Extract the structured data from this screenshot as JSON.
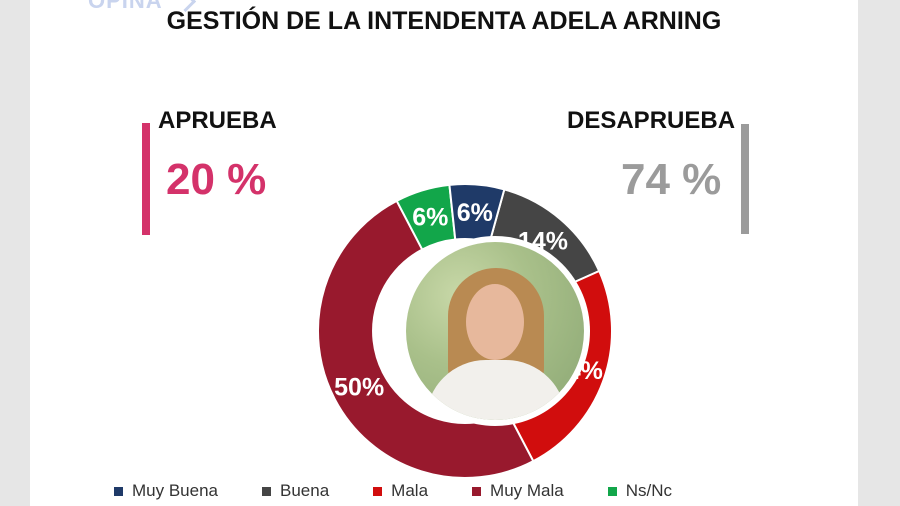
{
  "page": {
    "title": "GESTIÓN DE LA INTENDENTA ADELA ARNING",
    "logo_text": "OPINA"
  },
  "kpis": {
    "approve": {
      "label": "APRUEBA",
      "value": "20 %",
      "color": "#d4326a"
    },
    "disapprove": {
      "label": "DESAPRUEBA",
      "value": "74 %",
      "color": "#9b9b9b"
    }
  },
  "chart_data": {
    "type": "pie",
    "style": "donut",
    "center_image": "portrait photo",
    "categories": [
      "Muy Buena",
      "Buena",
      "Mala",
      "Muy Mala",
      "Ns/Nc"
    ],
    "values": [
      6,
      14,
      24,
      50,
      6
    ],
    "labels": [
      "6%",
      "14%",
      "24%",
      "50%",
      "6%"
    ],
    "colors": [
      "#1f3a68",
      "#454545",
      "#d10d0d",
      "#98192d",
      "#12a64a"
    ],
    "legend": {
      "position": "bottom",
      "entries": [
        "Muy Buena",
        "Buena",
        "Mala",
        "Muy Mala",
        "Ns/Nc"
      ]
    }
  }
}
